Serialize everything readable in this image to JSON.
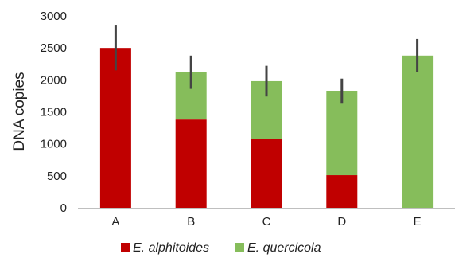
{
  "chart_data": {
    "type": "bar",
    "stacked": true,
    "categories": [
      "A",
      "B",
      "C",
      "D",
      "E"
    ],
    "series": [
      {
        "name": "E. alphitoides",
        "color": "#c00000",
        "values": [
          2500,
          1380,
          1080,
          510,
          0
        ]
      },
      {
        "name": "E. quercicola",
        "color": "#86bd5b",
        "values": [
          0,
          740,
          900,
          1320,
          2380
        ]
      }
    ],
    "totals": [
      2500,
      2120,
      1980,
      1830,
      2380
    ],
    "error": [
      350,
      260,
      240,
      190,
      260
    ],
    "ylabel": "DNA copies",
    "xlabel": "",
    "ylim": [
      0,
      3000
    ],
    "yticks": [
      0,
      500,
      1000,
      1500,
      2000,
      2500,
      3000
    ],
    "grid": false,
    "legend": "bottom"
  }
}
